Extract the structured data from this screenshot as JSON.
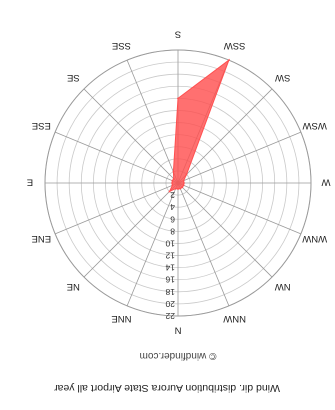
{
  "chart_data": {
    "type": "radar",
    "title": "Wind dir. distribution Aurora State Airport all year",
    "watermark": "© windfinder.com",
    "directions": [
      "N",
      "NNE",
      "NE",
      "ENE",
      "E",
      "ESE",
      "SE",
      "SSE",
      "S",
      "SSW",
      "SW",
      "WSW",
      "W",
      "WNW",
      "NW",
      "NNW"
    ],
    "radial_ticks": [
      2,
      4,
      6,
      8,
      10,
      12,
      14,
      16,
      18,
      20,
      22
    ],
    "rmax": 22,
    "series": [
      {
        "values": [
          1,
          1,
          2,
          1,
          1,
          1,
          1,
          2,
          14,
          22,
          2,
          1,
          1,
          1,
          1,
          1
        ],
        "color": "#ff5050"
      }
    ],
    "grid": true,
    "orientation": "upside-down"
  }
}
